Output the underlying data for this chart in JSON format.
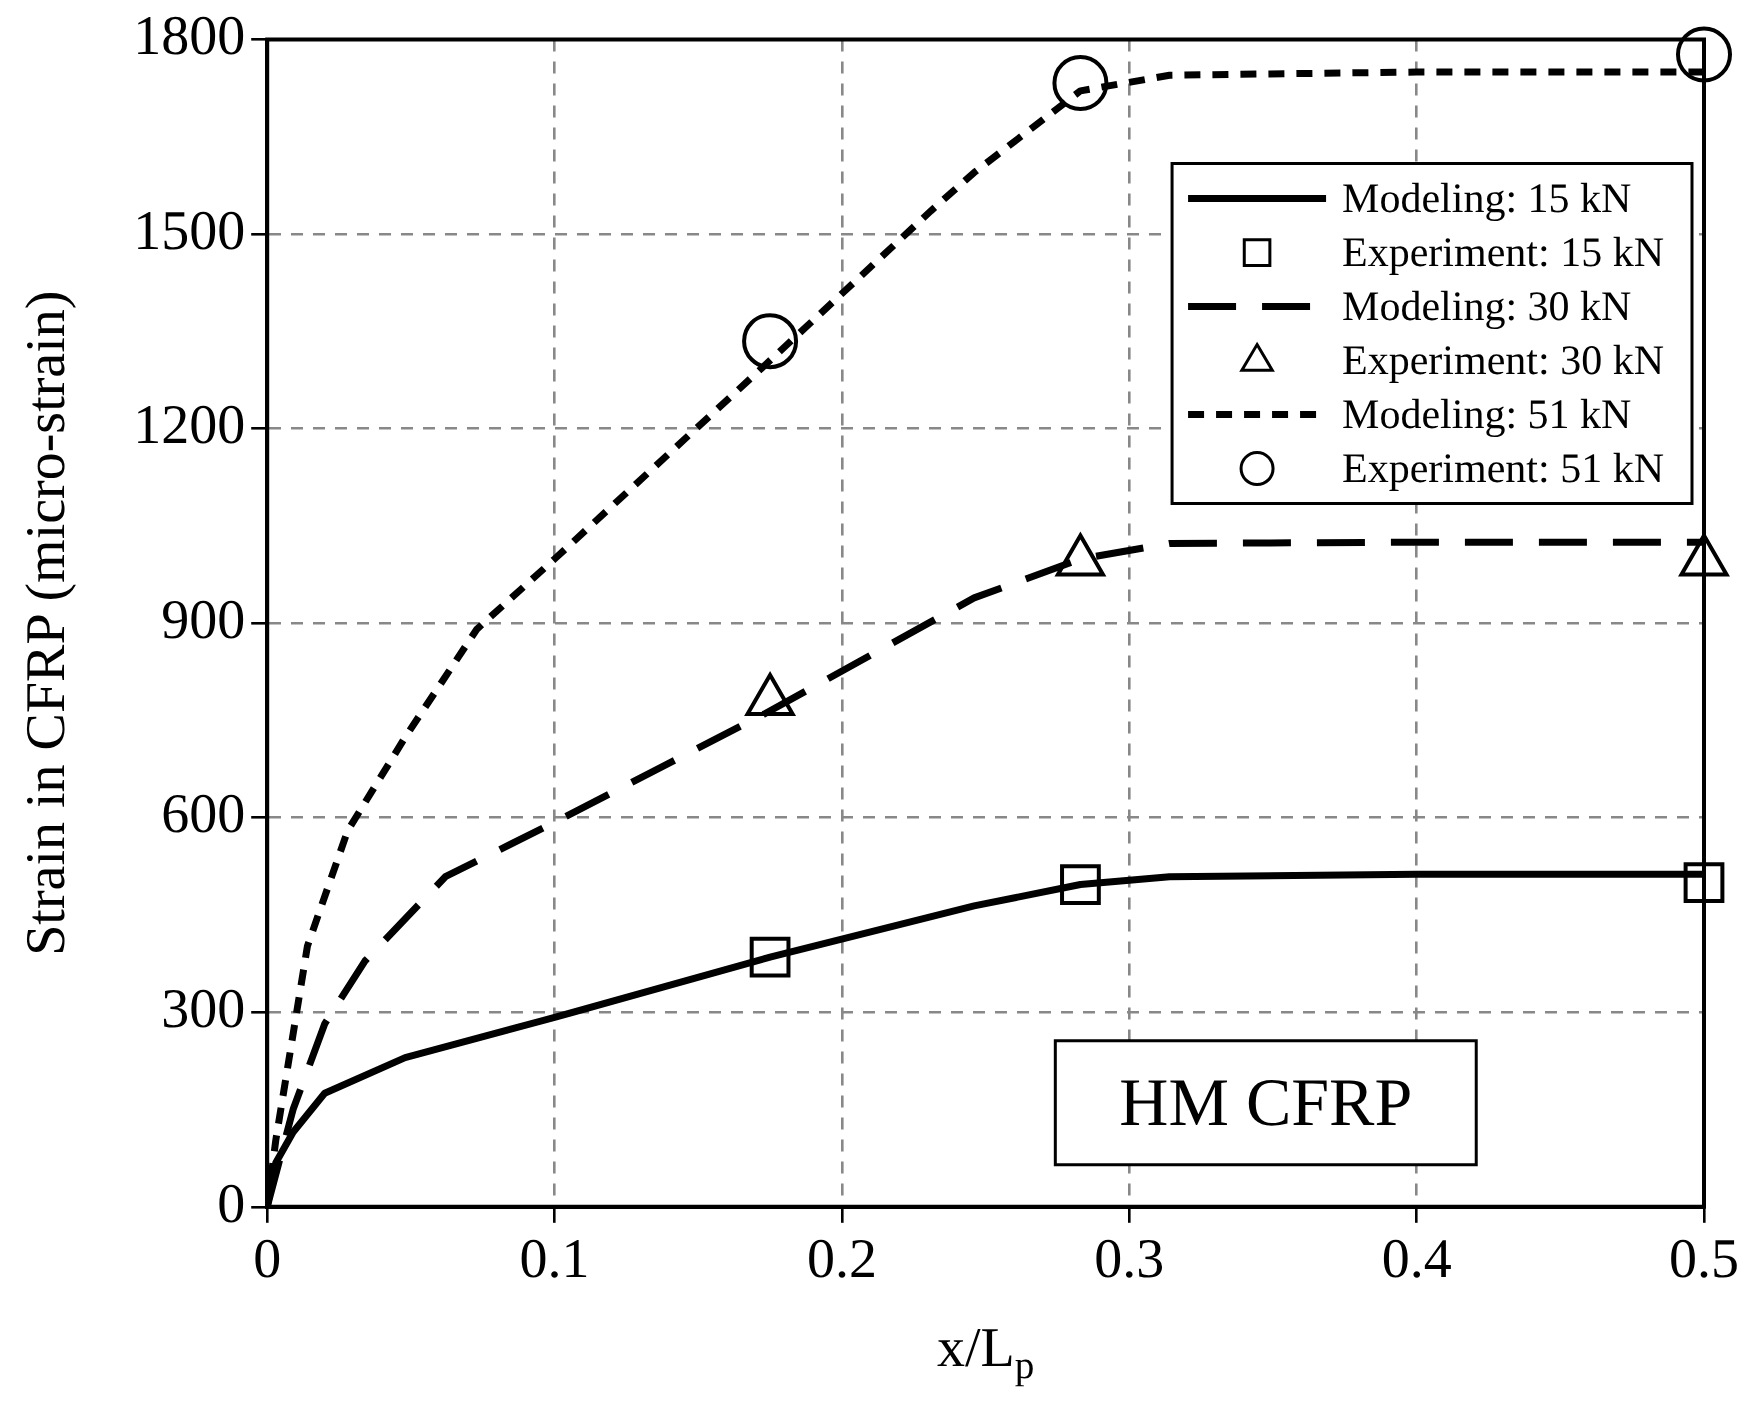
{
  "chart_data": {
    "type": "line",
    "xlabel": "x/L$_{p}$",
    "ylabel": "Strain in CFRP (micro-strain)",
    "xlim": [
      0,
      0.5
    ],
    "xticks": [
      0,
      0.1,
      0.2,
      0.3,
      0.4,
      0.5
    ],
    "ylim": [
      0,
      1800
    ],
    "yticks": [
      0,
      300,
      600,
      900,
      1200,
      1500,
      1800
    ],
    "grid": true,
    "legend": "top right",
    "annotations": [
      "HM CFRP"
    ],
    "series": [
      {
        "name": "Modeling: 15 kN",
        "color": "#000000",
        "line_style": "solid",
        "marker": "none",
        "x": [
          0,
          0.003,
          0.009,
          0.02,
          0.048,
          0.1,
          0.175,
          0.246,
          0.283,
          0.314,
          0.4,
          0.5
        ],
        "values": [
          0,
          68,
          115,
          175,
          230,
          292,
          385,
          464,
          497,
          509,
          513,
          513
        ]
      },
      {
        "name": "Experiment: 15 kN",
        "type": "scatter",
        "color": "#000000",
        "marker": "square",
        "x": [
          0.175,
          0.283,
          0.5
        ],
        "values": [
          385,
          497,
          500
        ]
      },
      {
        "name": "Modeling: 30 kN",
        "color": "#000000",
        "line_style": "dashed",
        "marker": "none",
        "x": [
          0,
          0.009,
          0.02,
          0.034,
          0.062,
          0.1,
          0.173,
          0.246,
          0.283,
          0.314,
          0.4,
          0.5
        ],
        "values": [
          0,
          150,
          282,
          379,
          509,
          593,
          760,
          939,
          999,
          1023,
          1025,
          1025
        ]
      },
      {
        "name": "Experiment: 30 kN",
        "type": "scatter",
        "color": "#000000",
        "marker": "triangle",
        "x": [
          0.175,
          0.283,
          0.5
        ],
        "values": [
          780,
          995,
          995
        ]
      },
      {
        "name": "Modeling: 51 kN",
        "color": "#000000",
        "line_style": "dotted",
        "marker": "none",
        "x": [
          0,
          0.003,
          0.014,
          0.028,
          0.048,
          0.073,
          0.1,
          0.173,
          0.231,
          0.246,
          0.283,
          0.314,
          0.4,
          0.5
        ],
        "values": [
          0,
          103,
          402,
          580,
          724,
          891,
          999,
          1297,
          1536,
          1595,
          1721,
          1745,
          1750,
          1750
        ]
      },
      {
        "name": "Experiment: 51 kN",
        "type": "scatter",
        "color": "#000000",
        "marker": "circle",
        "x": [
          0.175,
          0.283,
          0.5
        ],
        "values": [
          1335,
          1733,
          1777
        ]
      }
    ]
  }
}
